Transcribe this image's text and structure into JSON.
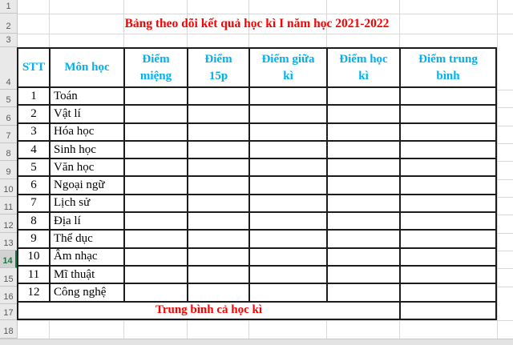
{
  "title": {
    "text": "Bảng theo dõi kết quả học kì I năm học 2021-2022",
    "color": "#FF0000"
  },
  "row_headers": {
    "numbers": [
      "1",
      "2",
      "3",
      "4",
      "5",
      "6",
      "7",
      "8",
      "9",
      "10",
      "11",
      "12",
      "13",
      "14",
      "15",
      "16",
      "17",
      "18"
    ],
    "selected_row": "14"
  },
  "selection": {
    "active_cell": "A14"
  },
  "table": {
    "columns": [
      {
        "label": "STT",
        "lines": [
          "STT"
        ]
      },
      {
        "label": "Môn học",
        "lines": [
          "Môn học"
        ]
      },
      {
        "label": "Điểm miệng",
        "lines": [
          "Điểm",
          "miệng"
        ]
      },
      {
        "label": "Điểm 15p",
        "lines": [
          "Điểm",
          "15p"
        ]
      },
      {
        "label": "Điểm giữa kì",
        "lines": [
          "Điểm giữa",
          "kì"
        ]
      },
      {
        "label": "Điểm học kì",
        "lines": [
          "Điểm học",
          "kì"
        ]
      },
      {
        "label": "Điểm trung bình",
        "lines": [
          "Điểm trung",
          "bình"
        ]
      }
    ],
    "rows": [
      {
        "stt": "1",
        "subject": "Toán",
        "diem_mieng": "",
        "diem_15p": "",
        "diem_giua_ki": "",
        "diem_hoc_ki": "",
        "diem_trung_binh": ""
      },
      {
        "stt": "2",
        "subject": "Vật lí",
        "diem_mieng": "",
        "diem_15p": "",
        "diem_giua_ki": "",
        "diem_hoc_ki": "",
        "diem_trung_binh": ""
      },
      {
        "stt": "3",
        "subject": "Hóa học",
        "diem_mieng": "",
        "diem_15p": "",
        "diem_giua_ki": "",
        "diem_hoc_ki": "",
        "diem_trung_binh": ""
      },
      {
        "stt": "4",
        "subject": "Sinh học",
        "diem_mieng": "",
        "diem_15p": "",
        "diem_giua_ki": "",
        "diem_hoc_ki": "",
        "diem_trung_binh": ""
      },
      {
        "stt": "5",
        "subject": "Văn học",
        "diem_mieng": "",
        "diem_15p": "",
        "diem_giua_ki": "",
        "diem_hoc_ki": "",
        "diem_trung_binh": ""
      },
      {
        "stt": "6",
        "subject": "Ngoại ngữ",
        "diem_mieng": "",
        "diem_15p": "",
        "diem_giua_ki": "",
        "diem_hoc_ki": "",
        "diem_trung_binh": ""
      },
      {
        "stt": "7",
        "subject": "Lịch sử",
        "diem_mieng": "",
        "diem_15p": "",
        "diem_giua_ki": "",
        "diem_hoc_ki": "",
        "diem_trung_binh": ""
      },
      {
        "stt": "8",
        "subject": "Địa lí",
        "diem_mieng": "",
        "diem_15p": "",
        "diem_giua_ki": "",
        "diem_hoc_ki": "",
        "diem_trung_binh": ""
      },
      {
        "stt": "9",
        "subject": "Thể dục",
        "diem_mieng": "",
        "diem_15p": "",
        "diem_giua_ki": "",
        "diem_hoc_ki": "",
        "diem_trung_binh": ""
      },
      {
        "stt": "10",
        "subject": "Âm nhạc",
        "diem_mieng": "",
        "diem_15p": "",
        "diem_giua_ki": "",
        "diem_hoc_ki": "",
        "diem_trung_binh": ""
      },
      {
        "stt": "11",
        "subject": "Mĩ thuật",
        "diem_mieng": "",
        "diem_15p": "",
        "diem_giua_ki": "",
        "diem_hoc_ki": "",
        "diem_trung_binh": ""
      },
      {
        "stt": "12",
        "subject": "Công nghệ",
        "diem_mieng": "",
        "diem_15p": "",
        "diem_giua_ki": "",
        "diem_hoc_ki": "",
        "diem_trung_binh": ""
      }
    ],
    "footer": {
      "label": "Trung bình cả học kì",
      "value": "",
      "color": "#FF0000"
    }
  },
  "colors": {
    "title_red": "#FF0000",
    "header_blue": "#00B0F0",
    "selection_green": "#1E7A4A",
    "table_border": "#1C1C1C",
    "gridline": "#D8D8D8",
    "row_header_bg": "#E9E9E9"
  }
}
